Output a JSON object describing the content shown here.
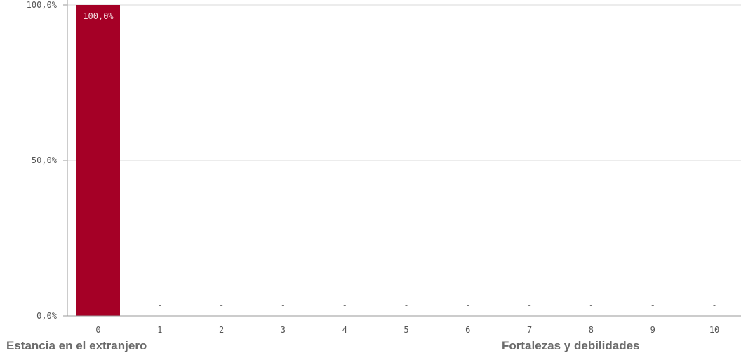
{
  "chart_data": {
    "type": "bar",
    "categories": [
      "0",
      "1",
      "2",
      "3",
      "4",
      "5",
      "6",
      "7",
      "8",
      "9",
      "10"
    ],
    "values": [
      100.0,
      0,
      0,
      0,
      0,
      0,
      0,
      0,
      0,
      0,
      0
    ],
    "data_labels": [
      "100,0%",
      "-",
      "-",
      "-",
      "-",
      "-",
      "-",
      "-",
      "-",
      "-",
      "-"
    ],
    "y_ticks": [
      {
        "value": 0,
        "label": "0,0%"
      },
      {
        "value": 50,
        "label": "50,0%"
      },
      {
        "value": 100,
        "label": "100,0%"
      }
    ],
    "ylim": [
      0,
      100
    ],
    "grid": true,
    "bar_color": "#a50026",
    "group_labels": {
      "left": "Estancia en el extranjero",
      "right": "Fortalezas y debilidades"
    }
  }
}
